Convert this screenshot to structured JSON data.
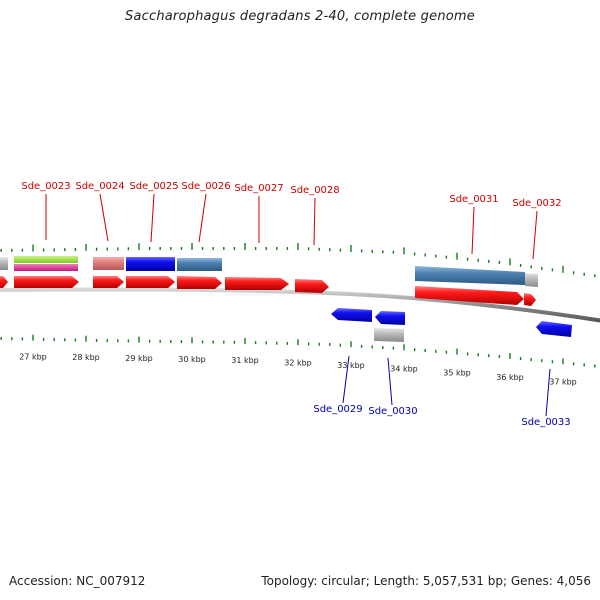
{
  "title": "Saccharophagus degradans 2-40, complete genome",
  "footer": {
    "accession_label": "Accession:",
    "accession": "NC_007912",
    "topology_label": "Topology:",
    "topology": "circular",
    "length_label": "Length:",
    "length": "5,057,531 bp",
    "genes_label": "Genes:",
    "genes": "4,056"
  },
  "colors": {
    "forward_label": "#cc0000",
    "reverse_label": "#0000aa",
    "cds_forward": "#ff0000",
    "cds_reverse": "#0000ee",
    "tick": "#1a7a1a",
    "backbone": "#888888",
    "gene_blue": "#0000ee",
    "gene_steel": "#4a7fb0",
    "gene_salmon": "#e08080",
    "gene_gray": "#b8b8b8",
    "gene_green": "#99dd44",
    "gene_magenta": "#dd3399"
  },
  "scale": {
    "unit": "kbp",
    "ticks": [
      {
        "value": 27,
        "label": "27 kbp"
      },
      {
        "value": 28,
        "label": "28 kbp"
      },
      {
        "value": 29,
        "label": "29 kbp"
      },
      {
        "value": 30,
        "label": "30 kbp"
      },
      {
        "value": 31,
        "label": "31 kbp"
      },
      {
        "value": 32,
        "label": "32 kbp"
      },
      {
        "value": 33,
        "label": "33 kbp"
      },
      {
        "value": 34,
        "label": "34 kbp"
      },
      {
        "value": 35,
        "label": "35 kbp"
      },
      {
        "value": 36,
        "label": "36 kbp"
      },
      {
        "value": 37,
        "label": "37 kbp"
      }
    ]
  },
  "genes_forward": [
    {
      "label": "Sde_0023"
    },
    {
      "label": "Sde_0024"
    },
    {
      "label": "Sde_0025"
    },
    {
      "label": "Sde_0026"
    },
    {
      "label": "Sde_0027"
    },
    {
      "label": "Sde_0028"
    },
    {
      "label": "Sde_0031"
    },
    {
      "label": "Sde_0032"
    }
  ],
  "genes_reverse": [
    {
      "label": "Sde_0029"
    },
    {
      "label": "Sde_0030"
    },
    {
      "label": "Sde_0033"
    }
  ]
}
